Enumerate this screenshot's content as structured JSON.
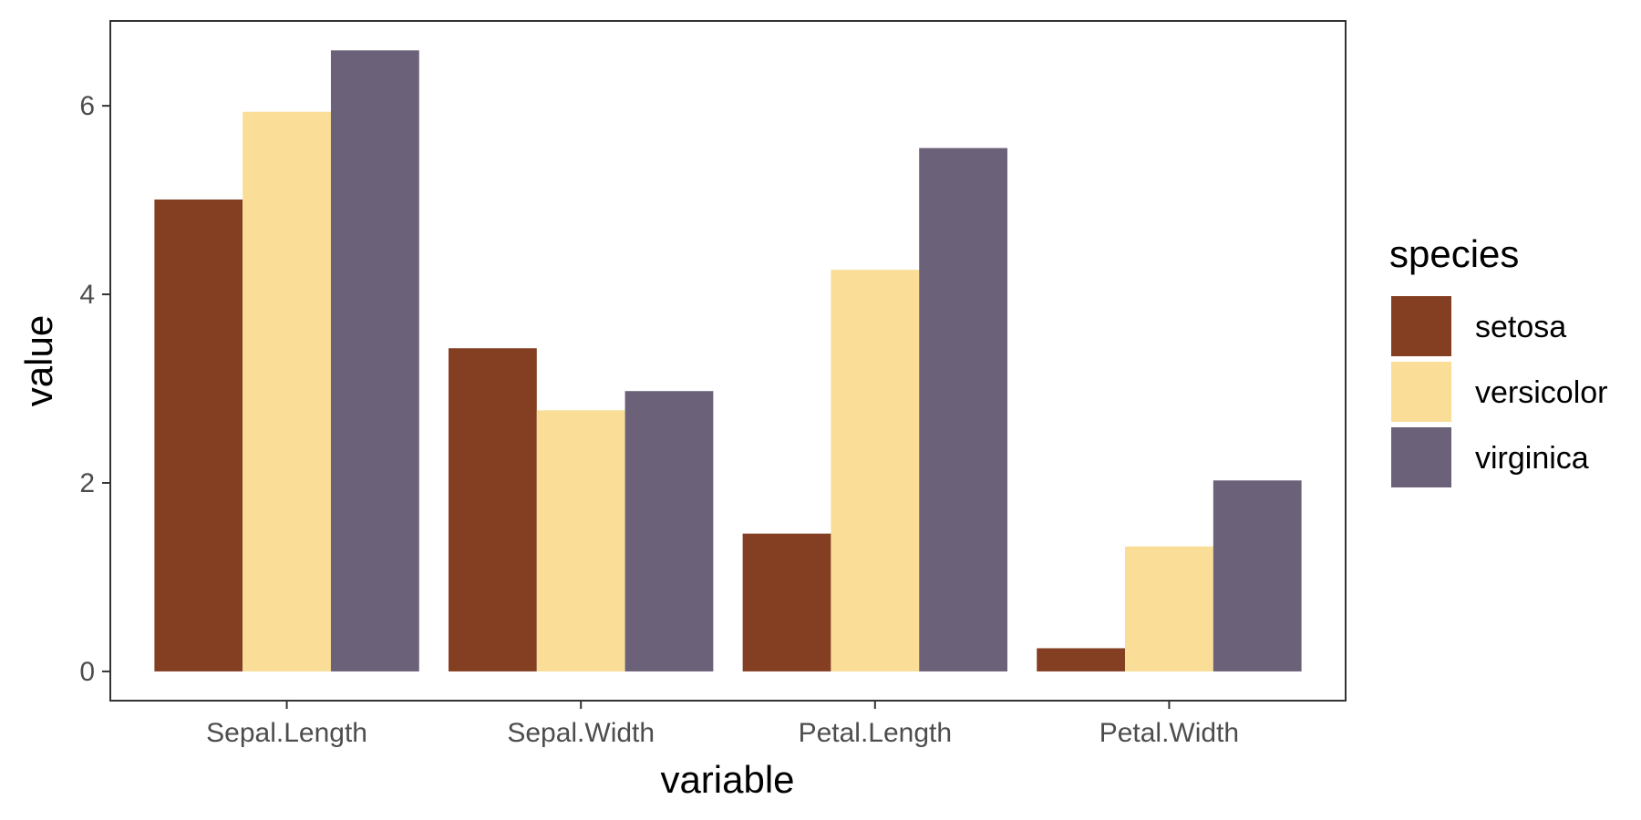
{
  "chart_data": {
    "type": "bar",
    "categories": [
      "Sepal.Length",
      "Sepal.Width",
      "Petal.Length",
      "Petal.Width"
    ],
    "series": [
      {
        "name": "setosa",
        "values": [
          5.006,
          3.428,
          1.462,
          0.246
        ],
        "color": "#843f22"
      },
      {
        "name": "versicolor",
        "values": [
          5.936,
          2.77,
          4.26,
          1.326
        ],
        "color": "#fade97"
      },
      {
        "name": "virginica",
        "values": [
          6.588,
          2.974,
          5.552,
          2.026
        ],
        "color": "#6b6178"
      }
    ],
    "title": "",
    "xlabel": "variable",
    "ylabel": "value",
    "ylim": [
      -0.31,
      6.9
    ],
    "yticks": [
      0,
      2,
      4,
      6
    ],
    "grid": false,
    "legend": {
      "title": "species",
      "position": "right"
    }
  }
}
